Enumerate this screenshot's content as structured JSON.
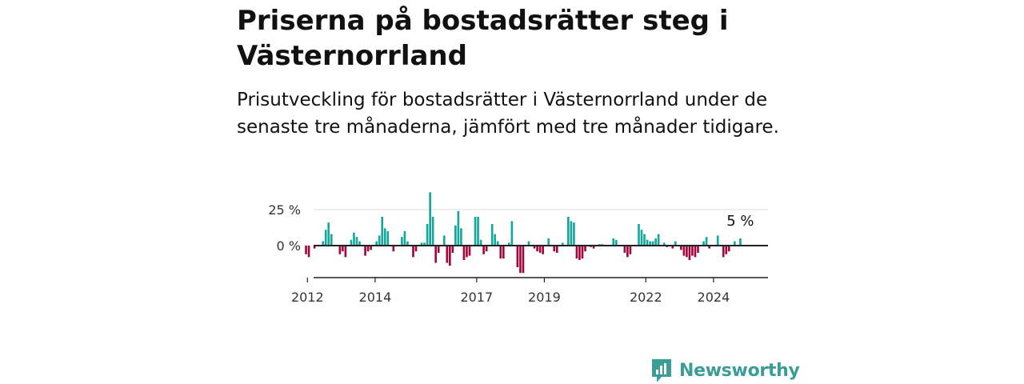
{
  "title": "Priserna på bostadsrätter steg i Västernorrland",
  "subtitle": "Prisutveckling för bostadsrätter i Västernorrland under de senaste tre månaderna, jämfört med tre månader tidigare.",
  "brand": {
    "name": "Newsworthy",
    "icon": "newsworthy-logo-icon"
  },
  "colors": {
    "positive": "#14a79c",
    "negative": "#a3053d",
    "axis": "#222222",
    "grid": "#dddddd"
  },
  "chart_data": {
    "type": "bar",
    "title": "",
    "xlabel": "",
    "ylabel": "",
    "ylim": [
      -20,
      40
    ],
    "xlim": [
      2011.5,
      2024.9
    ],
    "grid": "horizontal",
    "yticks": [
      {
        "value": 25,
        "label": "25 %"
      },
      {
        "value": 0,
        "label": "0 %"
      }
    ],
    "xticks": [
      {
        "value": 2012,
        "label": "2012"
      },
      {
        "value": 2014,
        "label": "2014"
      },
      {
        "value": 2017,
        "label": "2017"
      },
      {
        "value": 2019,
        "label": "2019"
      },
      {
        "value": 2022,
        "label": "2022"
      },
      {
        "value": 2024,
        "label": "2024"
      }
    ],
    "last_value_label": "5 %",
    "start": "2011-12",
    "series": [
      {
        "values": [
          -6,
          -8,
          0,
          -2,
          0,
          0,
          3,
          11,
          16,
          8,
          0,
          0,
          -6,
          -4,
          -8,
          0,
          4,
          9,
          6,
          3,
          0,
          -7,
          -4,
          -3,
          0,
          3,
          7,
          20,
          12,
          10,
          0,
          -4,
          0,
          0,
          6,
          10,
          3,
          0,
          -8,
          -4,
          0,
          2,
          2,
          15,
          37,
          20,
          -12,
          -5,
          0,
          7,
          -12,
          -14,
          -5,
          14,
          24,
          12,
          -10,
          -8,
          -7,
          0,
          20,
          20,
          4,
          -6,
          -4,
          0,
          15,
          8,
          3,
          -9,
          -9,
          0,
          2,
          17,
          0,
          -15,
          -19,
          -19,
          0,
          3,
          0,
          -2,
          -4,
          -5,
          -6,
          0,
          5,
          0,
          -4,
          -5,
          0,
          2,
          0,
          20,
          17,
          16,
          -9,
          -10,
          -9,
          -4,
          0,
          -1,
          -2,
          0,
          1,
          1,
          0,
          0,
          0,
          5,
          4,
          0,
          0,
          -5,
          -8,
          -6,
          0,
          0,
          15,
          11,
          8,
          4,
          3,
          3,
          5,
          8,
          0,
          2,
          -1,
          0,
          -2,
          3,
          0,
          -3,
          -7,
          -8,
          -10,
          -7,
          -8,
          -5,
          0,
          3,
          6,
          -2,
          0,
          0,
          7,
          0,
          -8,
          -6,
          -4,
          0,
          3,
          0,
          5
        ]
      }
    ]
  }
}
